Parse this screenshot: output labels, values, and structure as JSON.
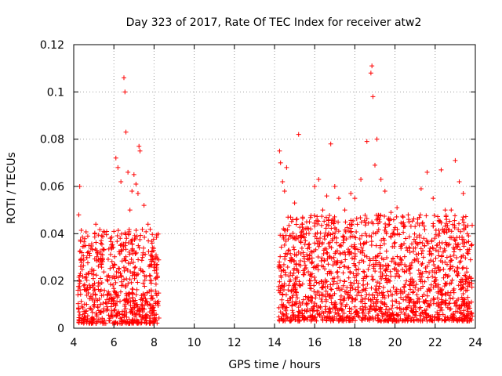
{
  "chart_data": {
    "type": "scatter",
    "title": "Day 323 of 2017, Rate Of TEC Index for receiver atw2",
    "xlabel": "GPS time / hours",
    "ylabel": "ROTI / TECUs",
    "xlim": [
      4,
      24
    ],
    "ylim": [
      0,
      0.12
    ],
    "x_ticks": [
      "4",
      "6",
      "8",
      "10",
      "12",
      "14",
      "16",
      "18",
      "20",
      "22",
      "24"
    ],
    "y_ticks": [
      "0",
      "0.02",
      "0.04",
      "0.06",
      "0.08",
      "0.1",
      "0.12"
    ],
    "grid": true,
    "marker": "+",
    "color": "#ff0000",
    "points": [
      [
        4.25,
        0.048
      ],
      [
        4.3,
        0.06
      ],
      [
        4.4,
        0.032
      ],
      [
        4.5,
        0.018
      ],
      [
        4.7,
        0.039
      ],
      [
        4.9,
        0.025
      ],
      [
        5.1,
        0.044
      ],
      [
        5.3,
        0.028
      ],
      [
        5.5,
        0.041
      ],
      [
        5.7,
        0.02
      ],
      [
        5.9,
        0.034
      ],
      [
        6.0,
        0.041
      ],
      [
        6.1,
        0.072
      ],
      [
        6.2,
        0.068
      ],
      [
        6.35,
        0.062
      ],
      [
        6.5,
        0.106
      ],
      [
        6.55,
        0.1
      ],
      [
        6.6,
        0.083
      ],
      [
        6.7,
        0.066
      ],
      [
        6.8,
        0.05
      ],
      [
        6.9,
        0.058
      ],
      [
        7.0,
        0.065
      ],
      [
        7.1,
        0.061
      ],
      [
        7.2,
        0.057
      ],
      [
        7.25,
        0.077
      ],
      [
        7.3,
        0.075
      ],
      [
        7.5,
        0.052
      ],
      [
        7.7,
        0.044
      ],
      [
        7.9,
        0.036
      ],
      [
        8.1,
        0.031
      ],
      [
        14.25,
        0.075
      ],
      [
        14.3,
        0.07
      ],
      [
        14.4,
        0.062
      ],
      [
        14.5,
        0.058
      ],
      [
        14.6,
        0.068
      ],
      [
        14.8,
        0.047
      ],
      [
        15.0,
        0.053
      ],
      [
        15.2,
        0.082
      ],
      [
        15.4,
        0.047
      ],
      [
        15.6,
        0.045
      ],
      [
        15.8,
        0.042
      ],
      [
        16.0,
        0.06
      ],
      [
        16.2,
        0.063
      ],
      [
        16.4,
        0.05
      ],
      [
        16.6,
        0.056
      ],
      [
        16.8,
        0.078
      ],
      [
        17.0,
        0.06
      ],
      [
        17.2,
        0.055
      ],
      [
        17.5,
        0.05
      ],
      [
        17.8,
        0.057
      ],
      [
        18.0,
        0.055
      ],
      [
        18.3,
        0.063
      ],
      [
        18.6,
        0.079
      ],
      [
        18.8,
        0.108
      ],
      [
        18.85,
        0.111
      ],
      [
        18.9,
        0.098
      ],
      [
        19.0,
        0.069
      ],
      [
        19.1,
        0.08
      ],
      [
        19.3,
        0.063
      ],
      [
        19.5,
        0.058
      ],
      [
        19.8,
        0.049
      ],
      [
        20.1,
        0.051
      ],
      [
        20.4,
        0.047
      ],
      [
        20.7,
        0.045
      ],
      [
        21.0,
        0.043
      ],
      [
        21.3,
        0.059
      ],
      [
        21.6,
        0.066
      ],
      [
        21.9,
        0.055
      ],
      [
        22.3,
        0.067
      ],
      [
        22.5,
        0.05
      ],
      [
        22.8,
        0.05
      ],
      [
        23.0,
        0.071
      ],
      [
        23.2,
        0.062
      ],
      [
        23.4,
        0.057
      ],
      [
        23.6,
        0.04
      ],
      [
        23.8,
        0.035
      ]
    ],
    "dense_segments": [
      {
        "x": [
          4.2,
          8.25
        ],
        "y_min": 0.002,
        "y_max": 0.042
      },
      {
        "x": [
          14.2,
          23.85
        ],
        "y_min": 0.003,
        "y_max": 0.048
      }
    ]
  }
}
